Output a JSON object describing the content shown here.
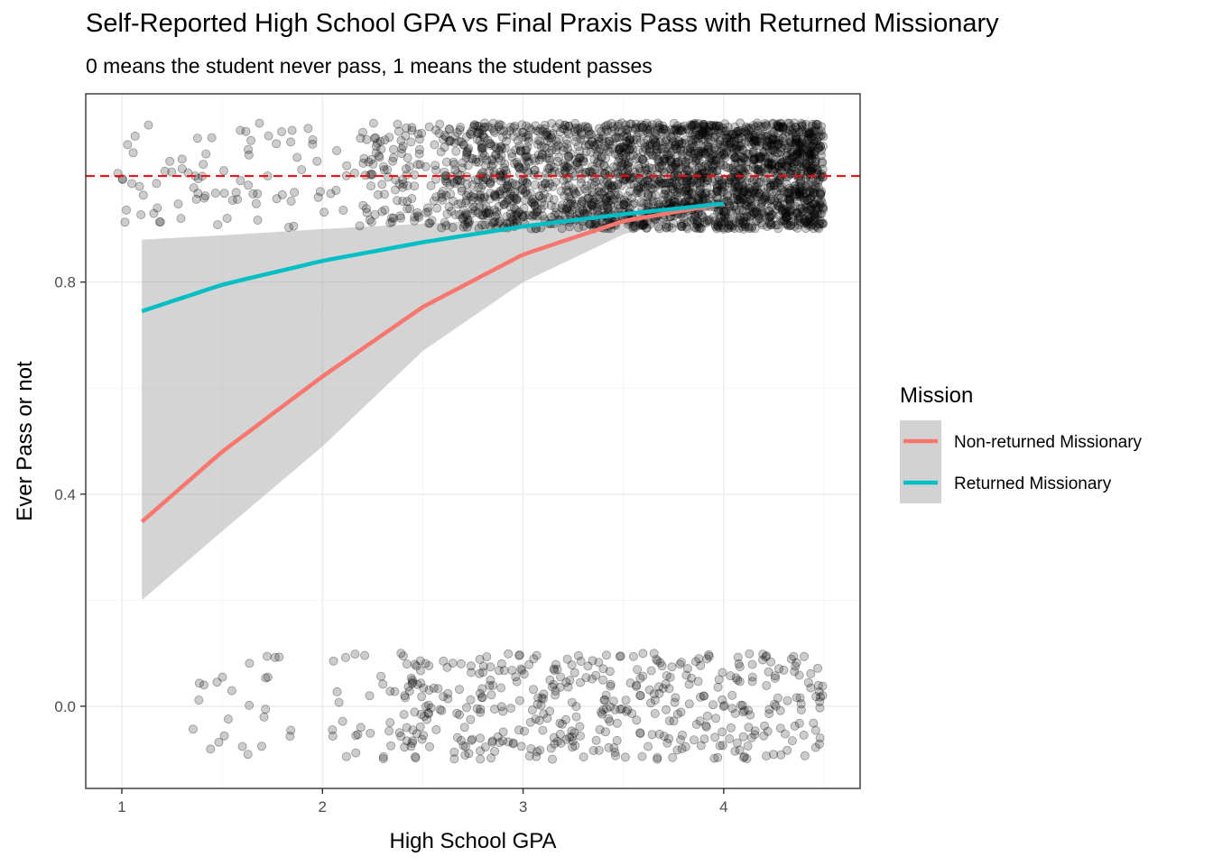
{
  "chart_data": {
    "type": "scatter",
    "title": "Self-Reported High School GPA vs Final Praxis Pass with Returned Missionary",
    "subtitle": "0 means the student never pass, 1 means the student passes",
    "xlabel": "High School GPA",
    "ylabel": "Ever Pass or not",
    "xlim": [
      0.82,
      4.68
    ],
    "ylim": [
      -0.155,
      1.155
    ],
    "x_ticks": [
      1,
      2,
      3,
      4
    ],
    "x_tick_labels": [
      "1",
      "2",
      "3",
      "4"
    ],
    "y_ticks": [
      0.0,
      0.4,
      0.8
    ],
    "y_tick_labels": [
      "0.0",
      "0.4",
      "0.8"
    ],
    "grid": true,
    "reference_line": {
      "y": 1.0,
      "color": "#ff0000",
      "style": "dashed"
    },
    "legend": {
      "title": "Mission",
      "position": "right",
      "entries": [
        {
          "label": "Non-returned Missionary",
          "color": "#f8766d"
        },
        {
          "label": "Returned Missionary",
          "color": "#00bfc4"
        }
      ]
    },
    "series": [
      {
        "name": "Non-returned Missionary",
        "color": "#f8766d",
        "x": [
          1.1,
          1.5,
          2.0,
          2.5,
          3.0,
          3.5,
          4.0
        ],
        "fit": [
          0.348,
          0.48,
          0.622,
          0.753,
          0.852,
          0.915,
          0.948
        ],
        "lower": [
          0.2,
          0.33,
          0.49,
          0.67,
          0.8,
          0.89,
          0.945
        ],
        "upper": [
          0.53,
          0.64,
          0.75,
          0.835,
          0.895,
          0.93,
          0.955
        ]
      },
      {
        "name": "Returned Missionary",
        "color": "#00bfc4",
        "x": [
          1.1,
          1.5,
          2.0,
          2.5,
          3.0,
          3.5,
          4.0
        ],
        "fit": [
          0.745,
          0.795,
          0.84,
          0.875,
          0.905,
          0.928,
          0.948
        ],
        "lower": [
          0.53,
          0.64,
          0.75,
          0.835,
          0.895,
          0.925,
          0.94
        ],
        "upper": [
          0.88,
          0.888,
          0.9,
          0.91,
          0.92,
          0.935,
          0.958
        ]
      }
    ],
    "jittered_points": {
      "description": "binary outcome (0 or 1) with vertical jitter of about ±0.1",
      "pass_value": 1,
      "fail_value": 0,
      "gpa_range": [
        0.98,
        4.5
      ],
      "point_color": "#000000",
      "point_opacity": 0.2
    }
  }
}
